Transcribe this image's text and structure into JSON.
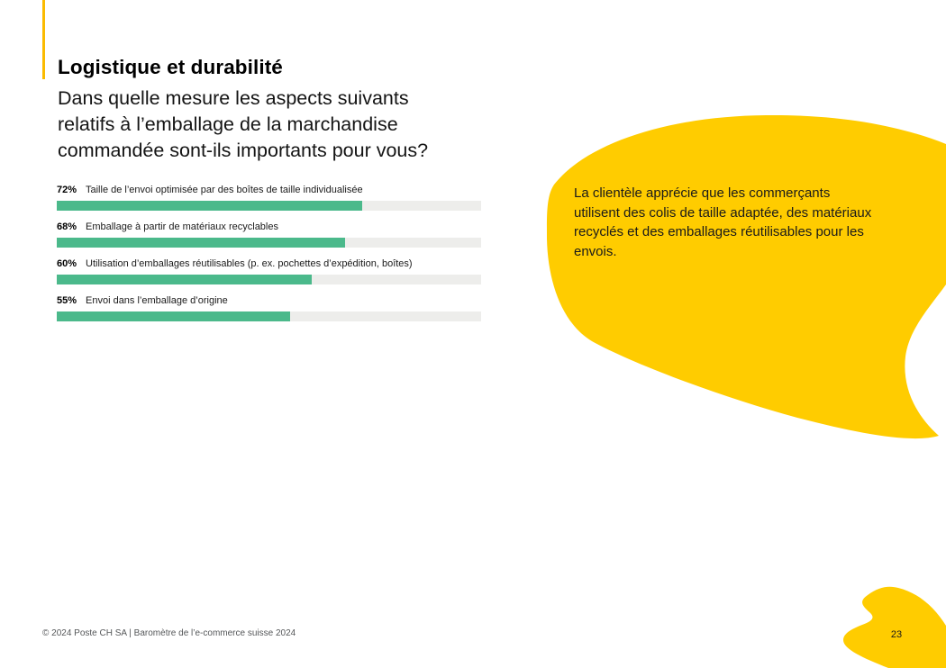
{
  "slide": {
    "title": "Logistique et durabilité",
    "subtitle_lines": [
      "Dans quelle mesure les aspects suivants",
      "relatifs à l’emballage de la marchandise",
      "commandée sont-ils importants pour vous?"
    ],
    "colors": {
      "accent_bar": "#fbbb00",
      "blob_yellow": "#ffcc00",
      "bar_green": "#4bb98b",
      "bar_track": "#ededeb",
      "text_dark": "#1a1a1a",
      "footer_gray": "#555759"
    }
  },
  "chart_data": {
    "type": "bar",
    "orientation": "horizontal",
    "title": "Dans quelle mesure les aspects suivants relatifs à l’emballage de la marchandise commandée sont-ils importants pour vous?",
    "unit": "%",
    "xlim": [
      0,
      100
    ],
    "grid": false,
    "legend": false,
    "categories": [
      "Taille de l’envoi optimisée par des boîtes de taille individualisée",
      "Emballage à partir de matériaux recyclables",
      "Utilisation d’emballages réutilisables (p. ex. pochettes d’expédition, boîtes)",
      "Envoi dans l’emballage d’origine"
    ],
    "values": [
      72,
      68,
      60,
      55
    ],
    "rows": [
      {
        "pct": "72%",
        "value": 72,
        "label": "Taille de l’envoi optimisée par des boîtes de taille individualisée"
      },
      {
        "pct": "68%",
        "value": 68,
        "label": "Emballage à partir de matériaux recyclables"
      },
      {
        "pct": "60%",
        "value": 60,
        "label": "Utilisation d’emballages réutilisables (p. ex. pochettes d’expédition, boîtes)"
      },
      {
        "pct": "55%",
        "value": 55,
        "label": "Envoi dans l’emballage d’origine"
      }
    ]
  },
  "callout": {
    "lines": [
      "La clientèle apprécie que les commerçants",
      "utilisent des colis de taille adaptée, des matériaux",
      "recyclés et des emballages réutilisables pour les",
      "envois."
    ]
  },
  "footer": {
    "copyright": "© 2024 Poste CH SA | Baromètre de l’e-commerce suisse 2024",
    "page_number": "23"
  }
}
